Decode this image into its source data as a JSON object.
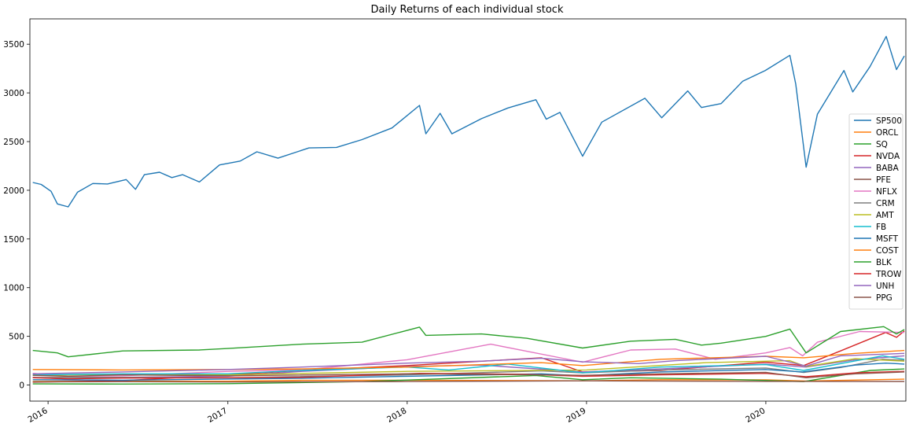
{
  "chart_data": {
    "type": "line",
    "title": "Daily Returns of each individual stock",
    "xlabel": "",
    "ylabel": "",
    "x_range": [
      "2015-11-25",
      "2020-10-12"
    ],
    "ylim": [
      -165,
      3760
    ],
    "x_ticks": [
      "2016-01-01",
      "2017-01-01",
      "2018-01-01",
      "2019-01-01",
      "2020-01-01"
    ],
    "x_tick_labels": [
      "2016",
      "2017",
      "2018",
      "2019",
      "2020"
    ],
    "y_ticks": [
      0,
      500,
      1000,
      1500,
      2000,
      2500,
      3000,
      3500
    ],
    "y_tick_labels": [
      "0",
      "500",
      "1000",
      "1500",
      "2000",
      "2500",
      "3000",
      "3500"
    ],
    "grid": false,
    "legend_position": "center-right",
    "series": [
      {
        "name": "SP500",
        "color": "#1f77b4",
        "points": [
          [
            "2015-12-01",
            2080
          ],
          [
            "2015-12-18",
            2060
          ],
          [
            "2016-01-07",
            1990
          ],
          [
            "2016-01-20",
            1860
          ],
          [
            "2016-02-11",
            1830
          ],
          [
            "2016-03-01",
            1980
          ],
          [
            "2016-04-01",
            2070
          ],
          [
            "2016-05-01",
            2065
          ],
          [
            "2016-06-08",
            2110
          ],
          [
            "2016-06-27",
            2010
          ],
          [
            "2016-07-15",
            2160
          ],
          [
            "2016-08-15",
            2185
          ],
          [
            "2016-09-09",
            2130
          ],
          [
            "2016-10-01",
            2160
          ],
          [
            "2016-11-04",
            2085
          ],
          [
            "2016-12-15",
            2260
          ],
          [
            "2017-01-26",
            2300
          ],
          [
            "2017-03-01",
            2395
          ],
          [
            "2017-04-13",
            2330
          ],
          [
            "2017-06-15",
            2435
          ],
          [
            "2017-08-10",
            2440
          ],
          [
            "2017-10-01",
            2520
          ],
          [
            "2017-12-01",
            2640
          ],
          [
            "2018-01-26",
            2872
          ],
          [
            "2018-02-08",
            2580
          ],
          [
            "2018-03-09",
            2790
          ],
          [
            "2018-04-02",
            2580
          ],
          [
            "2018-06-01",
            2735
          ],
          [
            "2018-07-25",
            2845
          ],
          [
            "2018-09-20",
            2930
          ],
          [
            "2018-10-11",
            2730
          ],
          [
            "2018-11-08",
            2800
          ],
          [
            "2018-12-24",
            2350
          ],
          [
            "2019-02-01",
            2700
          ],
          [
            "2019-04-30",
            2945
          ],
          [
            "2019-06-03",
            2745
          ],
          [
            "2019-07-26",
            3020
          ],
          [
            "2019-08-23",
            2850
          ],
          [
            "2019-10-02",
            2890
          ],
          [
            "2019-11-15",
            3120
          ],
          [
            "2019-12-31",
            3230
          ],
          [
            "2020-02-19",
            3386
          ],
          [
            "2020-03-02",
            3090
          ],
          [
            "2020-03-23",
            2237
          ],
          [
            "2020-04-15",
            2780
          ],
          [
            "2020-06-08",
            3230
          ],
          [
            "2020-06-26",
            3010
          ],
          [
            "2020-07-31",
            3270
          ],
          [
            "2020-09-02",
            3580
          ],
          [
            "2020-09-23",
            3240
          ],
          [
            "2020-10-09",
            3380
          ]
        ]
      },
      {
        "name": "ORCL",
        "color": "#ff7f0e",
        "points": [
          [
            "2015-12-01",
            38
          ],
          [
            "2016-06-01",
            40
          ],
          [
            "2017-01-01",
            39
          ],
          [
            "2017-06-01",
            48
          ],
          [
            "2018-01-01",
            50
          ],
          [
            "2018-12-24",
            43
          ],
          [
            "2019-06-01",
            55
          ],
          [
            "2020-01-01",
            53
          ],
          [
            "2020-03-23",
            42
          ],
          [
            "2020-10-09",
            60
          ]
        ]
      },
      {
        "name": "SQ",
        "color": "#2ca02c",
        "points": [
          [
            "2015-12-01",
            12
          ],
          [
            "2016-06-01",
            10
          ],
          [
            "2017-01-01",
            14
          ],
          [
            "2017-10-01",
            35
          ],
          [
            "2018-09-20",
            98
          ],
          [
            "2018-12-24",
            55
          ],
          [
            "2019-04-01",
            75
          ],
          [
            "2019-10-01",
            60
          ],
          [
            "2020-03-18",
            35
          ],
          [
            "2020-08-01",
            150
          ],
          [
            "2020-10-09",
            165
          ]
        ]
      },
      {
        "name": "NVDA",
        "color": "#d62728",
        "points": [
          [
            "2015-12-01",
            30
          ],
          [
            "2016-06-01",
            45
          ],
          [
            "2017-01-01",
            105
          ],
          [
            "2017-06-01",
            150
          ],
          [
            "2018-01-01",
            200
          ],
          [
            "2018-10-01",
            280
          ],
          [
            "2018-12-24",
            135
          ],
          [
            "2019-06-01",
            150
          ],
          [
            "2020-01-01",
            235
          ],
          [
            "2020-03-18",
            200
          ],
          [
            "2020-06-01",
            350
          ],
          [
            "2020-09-01",
            540
          ],
          [
            "2020-09-23",
            490
          ],
          [
            "2020-10-09",
            555
          ]
        ]
      },
      {
        "name": "BABA",
        "color": "#9467bd",
        "points": [
          [
            "2015-12-01",
            80
          ],
          [
            "2016-02-11",
            60
          ],
          [
            "2016-06-01",
            80
          ],
          [
            "2017-01-01",
            90
          ],
          [
            "2017-06-01",
            140
          ],
          [
            "2018-01-01",
            190
          ],
          [
            "2018-06-01",
            205
          ],
          [
            "2018-12-24",
            135
          ],
          [
            "2019-06-01",
            165
          ],
          [
            "2020-01-01",
            215
          ],
          [
            "2020-03-23",
            185
          ],
          [
            "2020-07-01",
            260
          ],
          [
            "2020-10-09",
            300
          ]
        ]
      },
      {
        "name": "PFE",
        "color": "#8c564b",
        "points": [
          [
            "2015-12-01",
            32
          ],
          [
            "2016-06-01",
            35
          ],
          [
            "2017-01-01",
            31
          ],
          [
            "2018-01-01",
            36
          ],
          [
            "2019-01-01",
            43
          ],
          [
            "2020-01-01",
            38
          ],
          [
            "2020-10-09",
            37
          ]
        ]
      },
      {
        "name": "NFLX",
        "color": "#e377c2",
        "points": [
          [
            "2015-12-01",
            120
          ],
          [
            "2016-02-11",
            90
          ],
          [
            "2016-06-01",
            95
          ],
          [
            "2017-01-01",
            140
          ],
          [
            "2017-06-01",
            155
          ],
          [
            "2018-01-01",
            260
          ],
          [
            "2018-06-20",
            420
          ],
          [
            "2018-12-24",
            235
          ],
          [
            "2019-04-01",
            360
          ],
          [
            "2019-07-01",
            370
          ],
          [
            "2019-09-20",
            265
          ],
          [
            "2020-01-01",
            330
          ],
          [
            "2020-02-19",
            385
          ],
          [
            "2020-03-16",
            300
          ],
          [
            "2020-04-15",
            440
          ],
          [
            "2020-07-10",
            550
          ],
          [
            "2020-10-09",
            540
          ]
        ]
      },
      {
        "name": "CRM",
        "color": "#7f7f7f",
        "points": [
          [
            "2015-12-01",
            78
          ],
          [
            "2016-06-01",
            80
          ],
          [
            "2017-01-01",
            75
          ],
          [
            "2018-01-01",
            105
          ],
          [
            "2018-10-01",
            145
          ],
          [
            "2018-12-24",
            125
          ],
          [
            "2019-06-01",
            155
          ],
          [
            "2020-01-01",
            175
          ],
          [
            "2020-03-18",
            130
          ],
          [
            "2020-06-01",
            180
          ],
          [
            "2020-08-26",
            265
          ],
          [
            "2020-10-09",
            255
          ]
        ]
      },
      {
        "name": "AMT",
        "color": "#bcbd22",
        "points": [
          [
            "2015-12-01",
            100
          ],
          [
            "2016-06-01",
            110
          ],
          [
            "2017-01-01",
            105
          ],
          [
            "2018-01-01",
            140
          ],
          [
            "2019-01-01",
            155
          ],
          [
            "2019-09-01",
            230
          ],
          [
            "2020-02-19",
            250
          ],
          [
            "2020-03-23",
            190
          ],
          [
            "2020-07-01",
            270
          ],
          [
            "2020-10-09",
            245
          ]
        ]
      },
      {
        "name": "FB",
        "color": "#17becf",
        "points": [
          [
            "2015-12-01",
            105
          ],
          [
            "2016-06-01",
            115
          ],
          [
            "2017-01-01",
            115
          ],
          [
            "2017-06-01",
            150
          ],
          [
            "2018-01-01",
            185
          ],
          [
            "2018-03-27",
            155
          ],
          [
            "2018-07-25",
            215
          ],
          [
            "2018-12-24",
            125
          ],
          [
            "2019-06-01",
            185
          ],
          [
            "2020-01-01",
            210
          ],
          [
            "2020-03-18",
            150
          ],
          [
            "2020-08-26",
            300
          ],
          [
            "2020-10-09",
            265
          ]
        ]
      },
      {
        "name": "MSFT",
        "color": "#1f77b4",
        "points": [
          [
            "2015-12-01",
            55
          ],
          [
            "2016-06-01",
            50
          ],
          [
            "2017-01-01",
            62
          ],
          [
            "2017-06-01",
            70
          ],
          [
            "2018-01-01",
            90
          ],
          [
            "2018-10-01",
            115
          ],
          [
            "2018-12-24",
            95
          ],
          [
            "2019-06-01",
            135
          ],
          [
            "2020-01-01",
            160
          ],
          [
            "2020-03-16",
            135
          ],
          [
            "2020-07-01",
            205
          ],
          [
            "2020-09-01",
            225
          ],
          [
            "2020-10-09",
            215
          ]
        ]
      },
      {
        "name": "COST",
        "color": "#ff7f0e",
        "points": [
          [
            "2015-12-01",
            160
          ],
          [
            "2016-06-01",
            155
          ],
          [
            "2017-01-01",
            160
          ],
          [
            "2017-06-01",
            165
          ],
          [
            "2018-01-01",
            185
          ],
          [
            "2018-10-01",
            230
          ],
          [
            "2018-12-24",
            200
          ],
          [
            "2019-06-01",
            265
          ],
          [
            "2020-01-01",
            295
          ],
          [
            "2020-03-18",
            280
          ],
          [
            "2020-07-01",
            325
          ],
          [
            "2020-10-09",
            355
          ]
        ]
      },
      {
        "name": "BLK",
        "color": "#2ca02c",
        "points": [
          [
            "2015-12-01",
            355
          ],
          [
            "2016-01-20",
            330
          ],
          [
            "2016-02-11",
            290
          ],
          [
            "2016-06-01",
            350
          ],
          [
            "2016-11-04",
            360
          ],
          [
            "2017-01-01",
            375
          ],
          [
            "2017-06-01",
            420
          ],
          [
            "2017-10-01",
            440
          ],
          [
            "2018-01-26",
            595
          ],
          [
            "2018-02-08",
            510
          ],
          [
            "2018-06-01",
            525
          ],
          [
            "2018-09-01",
            480
          ],
          [
            "2018-12-24",
            380
          ],
          [
            "2019-04-01",
            450
          ],
          [
            "2019-07-01",
            470
          ],
          [
            "2019-08-23",
            410
          ],
          [
            "2019-10-02",
            430
          ],
          [
            "2020-01-01",
            500
          ],
          [
            "2020-02-19",
            575
          ],
          [
            "2020-03-23",
            330
          ],
          [
            "2020-06-01",
            550
          ],
          [
            "2020-08-28",
            600
          ],
          [
            "2020-09-23",
            525
          ],
          [
            "2020-10-09",
            570
          ]
        ]
      },
      {
        "name": "TROW",
        "color": "#d62728",
        "points": [
          [
            "2015-12-01",
            75
          ],
          [
            "2016-02-11",
            65
          ],
          [
            "2016-06-01",
            72
          ],
          [
            "2017-01-01",
            75
          ],
          [
            "2017-06-01",
            80
          ],
          [
            "2018-01-26",
            120
          ],
          [
            "2018-09-01",
            110
          ],
          [
            "2018-12-24",
            90
          ],
          [
            "2019-06-01",
            105
          ],
          [
            "2020-01-01",
            120
          ],
          [
            "2020-03-23",
            85
          ],
          [
            "2020-07-01",
            125
          ],
          [
            "2020-10-09",
            140
          ]
        ]
      },
      {
        "name": "UNH",
        "color": "#9467bd",
        "points": [
          [
            "2015-12-01",
            115
          ],
          [
            "2016-06-01",
            135
          ],
          [
            "2017-01-01",
            160
          ],
          [
            "2017-06-01",
            185
          ],
          [
            "2018-01-01",
            225
          ],
          [
            "2018-06-01",
            245
          ],
          [
            "2018-10-01",
            275
          ],
          [
            "2018-12-24",
            240
          ],
          [
            "2019-04-17",
            220
          ],
          [
            "2019-07-01",
            250
          ],
          [
            "2020-01-01",
            295
          ],
          [
            "2020-03-23",
            195
          ],
          [
            "2020-06-01",
            300
          ],
          [
            "2020-10-09",
            325
          ]
        ]
      },
      {
        "name": "PPG",
        "color": "#8c564b",
        "points": [
          [
            "2015-12-01",
            100
          ],
          [
            "2016-02-11",
            90
          ],
          [
            "2016-06-01",
            105
          ],
          [
            "2017-01-01",
            95
          ],
          [
            "2018-01-01",
            115
          ],
          [
            "2018-10-01",
            105
          ],
          [
            "2018-12-24",
            100
          ],
          [
            "2019-06-01",
            115
          ],
          [
            "2020-01-01",
            130
          ],
          [
            "2020-03-23",
            75
          ],
          [
            "2020-07-01",
            115
          ],
          [
            "2020-10-09",
            135
          ]
        ]
      }
    ]
  }
}
